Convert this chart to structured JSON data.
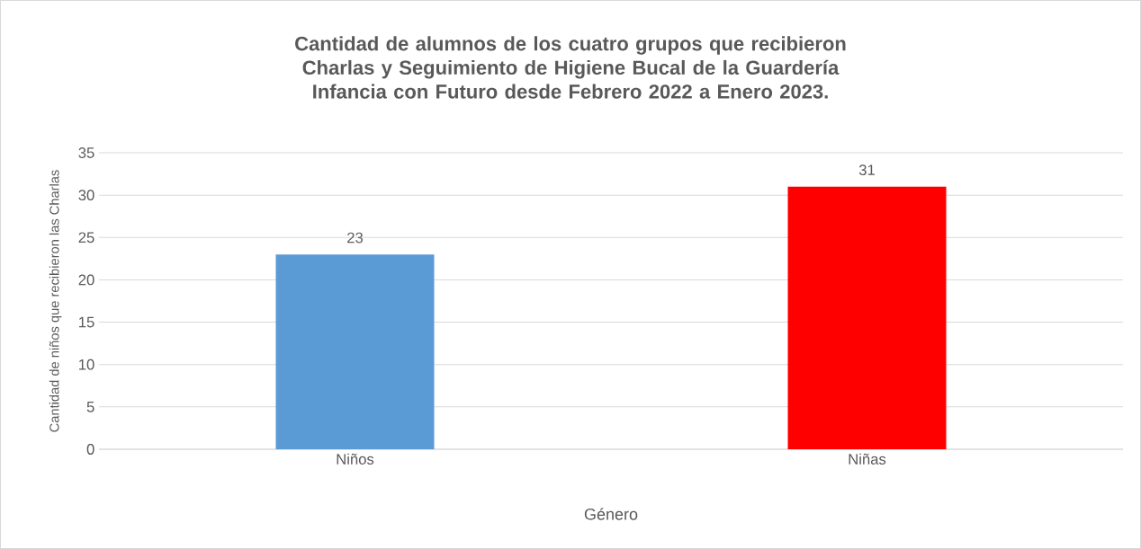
{
  "chart_data": {
    "type": "bar",
    "title": "Cantidad de alumnos de los cuatro grupos que recibieron Charlas y Seguimiento de Higiene Bucal de la Guardería Infancia con Futuro desde Febrero 2022 a Enero 2023.",
    "xlabel": "Género",
    "ylabel": "Cantidad de niños que recibieron las Charlas",
    "categories": [
      "Niños",
      "Niñas"
    ],
    "values": [
      23,
      31
    ],
    "colors": [
      "#5b9bd5",
      "#ff0000"
    ],
    "ylim": [
      0,
      35
    ],
    "yticks": [
      0,
      5,
      10,
      15,
      20,
      25,
      30,
      35
    ],
    "grid": "y",
    "data_labels": true
  }
}
